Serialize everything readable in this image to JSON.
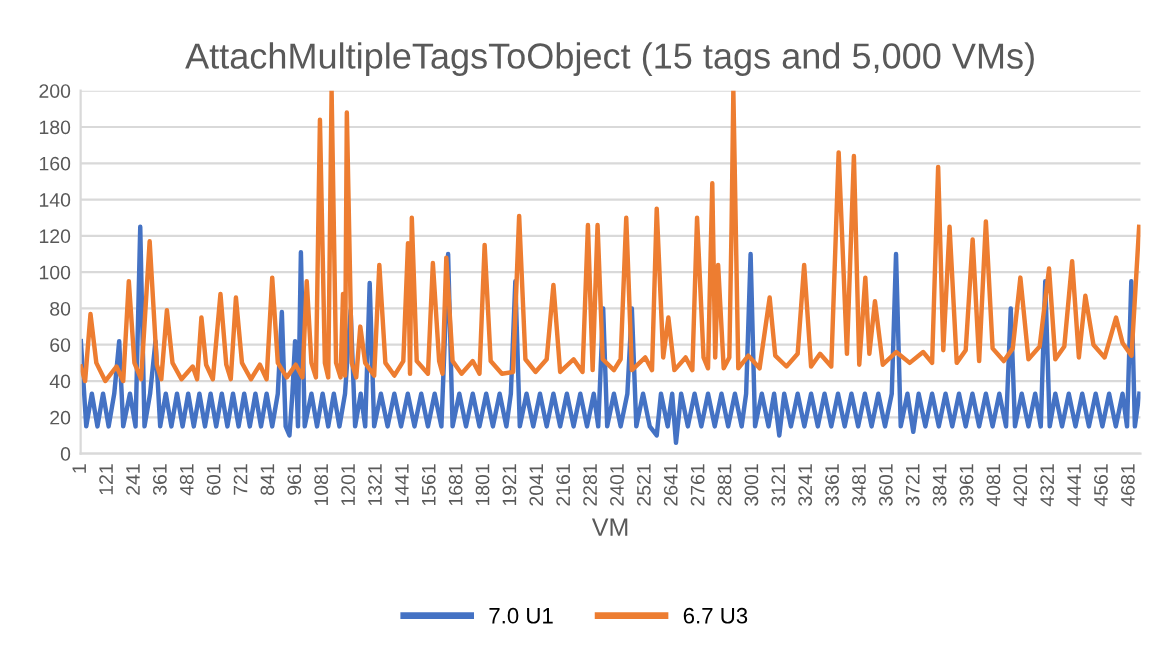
{
  "chart_data": {
    "type": "line",
    "title": "AttachMultipleTagsToObject (15 tags and 5,000 VMs)",
    "xlabel": "VM",
    "xlim": [
      0,
      4730
    ],
    "xticks": [
      1,
      121,
      241,
      361,
      481,
      601,
      721,
      841,
      961,
      1081,
      1201,
      1321,
      1441,
      1561,
      1681,
      1801,
      1921,
      2041,
      2161,
      2281,
      2401,
      2521,
      2641,
      2761,
      2881,
      3001,
      3121,
      3241,
      3361,
      3481,
      3601,
      3721,
      3841,
      3961,
      4081,
      4201,
      4321,
      4441,
      4561,
      4681
    ],
    "ylim": [
      0,
      200
    ],
    "yticks": [
      0,
      20,
      40,
      60,
      80,
      100,
      120,
      140,
      160,
      180,
      200
    ],
    "grid": "y",
    "legend": "bottom",
    "marker": "none",
    "line_style": "solid",
    "series": [
      {
        "name": "7.0 U1",
        "color": "#4472c4",
        "x": [
          1,
          25,
          50,
          75,
          100,
          125,
          150,
          172,
          190,
          220,
          245,
          266,
          285,
          310,
          334,
          355,
          380,
          405,
          430,
          455,
          480,
          505,
          530,
          555,
          580,
          605,
          630,
          655,
          680,
          705,
          730,
          755,
          780,
          805,
          830,
          855,
          880,
          898,
          915,
          932,
          945,
          957,
          970,
          983,
          1000,
          1030,
          1055,
          1080,
          1105,
          1130,
          1155,
          1180,
          1205,
          1225,
          1250,
          1270,
          1290,
          1310,
          1340,
          1370,
          1400,
          1430,
          1460,
          1490,
          1520,
          1550,
          1580,
          1610,
          1640,
          1660,
          1690,
          1720,
          1750,
          1780,
          1810,
          1840,
          1870,
          1900,
          1920,
          1940,
          1960,
          1990,
          2020,
          2050,
          2080,
          2110,
          2140,
          2170,
          2200,
          2230,
          2260,
          2290,
          2310,
          2332,
          2350,
          2380,
          2410,
          2440,
          2460,
          2480,
          2510,
          2540,
          2571,
          2590,
          2620,
          2640,
          2657,
          2680,
          2710,
          2740,
          2770,
          2800,
          2830,
          2860,
          2890,
          2920,
          2950,
          2970,
          2990,
          3010,
          3040,
          3070,
          3095,
          3118,
          3140,
          3170,
          3200,
          3230,
          3260,
          3290,
          3320,
          3350,
          3380,
          3410,
          3440,
          3470,
          3500,
          3530,
          3560,
          3590,
          3620,
          3639,
          3660,
          3690,
          3716,
          3740,
          3770,
          3800,
          3830,
          3860,
          3890,
          3920,
          3950,
          3980,
          4010,
          4040,
          4070,
          4100,
          4130,
          4151,
          4170,
          4200,
          4230,
          4260,
          4285,
          4305,
          4325,
          4350,
          4380,
          4410,
          4440,
          4470,
          4500,
          4530,
          4560,
          4590,
          4620,
          4650,
          4670,
          4689,
          4705,
          4725
        ],
        "values": [
          62,
          15,
          33,
          15,
          33,
          15,
          33,
          62,
          15,
          33,
          15,
          125,
          15,
          33,
          62,
          15,
          33,
          15,
          33,
          15,
          33,
          15,
          33,
          15,
          33,
          15,
          33,
          15,
          33,
          15,
          33,
          15,
          33,
          15,
          33,
          15,
          33,
          78,
          15,
          10,
          33,
          62,
          15,
          111,
          15,
          33,
          15,
          33,
          15,
          33,
          15,
          33,
          79,
          15,
          33,
          15,
          94,
          15,
          33,
          15,
          33,
          15,
          33,
          15,
          33,
          15,
          33,
          15,
          110,
          15,
          33,
          15,
          33,
          15,
          33,
          15,
          33,
          15,
          33,
          95,
          15,
          33,
          15,
          33,
          15,
          33,
          15,
          33,
          15,
          33,
          15,
          33,
          15,
          80,
          15,
          33,
          15,
          33,
          80,
          15,
          33,
          15,
          10,
          33,
          15,
          33,
          6,
          33,
          15,
          33,
          15,
          33,
          15,
          33,
          15,
          33,
          15,
          33,
          110,
          15,
          33,
          15,
          33,
          10,
          33,
          15,
          33,
          15,
          33,
          15,
          33,
          15,
          33,
          15,
          33,
          15,
          33,
          15,
          33,
          15,
          33,
          110,
          15,
          33,
          12,
          33,
          15,
          33,
          15,
          33,
          15,
          33,
          15,
          33,
          15,
          33,
          15,
          33,
          15,
          80,
          15,
          33,
          15,
          33,
          15,
          95,
          15,
          33,
          15,
          33,
          15,
          33,
          15,
          33,
          15,
          33,
          15,
          33,
          15,
          95,
          15,
          33
        ]
      },
      {
        "name": "6.7 U3",
        "color": "#ed7d31",
        "x": [
          1,
          20,
          44,
          70,
          110,
          160,
          190,
          215,
          240,
          270,
          308,
          340,
          360,
          385,
          410,
          450,
          500,
          520,
          539,
          560,
          590,
          624,
          650,
          670,
          693,
          720,
          760,
          800,
          830,
          855,
          880,
          920,
          960,
          990,
          1009,
          1030,
          1050,
          1068,
          1090,
          1105,
          1120,
          1140,
          1160,
          1171,
          1180,
          1188,
          1210,
          1230,
          1248,
          1270,
          1310,
          1333,
          1360,
          1400,
          1440,
          1461,
          1470,
          1478,
          1500,
          1550,
          1572,
          1600,
          1615,
          1632,
          1660,
          1700,
          1750,
          1780,
          1803,
          1830,
          1880,
          1930,
          1957,
          1985,
          2030,
          2080,
          2110,
          2140,
          2200,
          2240,
          2264,
          2285,
          2307,
          2330,
          2380,
          2410,
          2435,
          2460,
          2520,
          2550,
          2571,
          2600,
          2623,
          2650,
          2700,
          2730,
          2751,
          2780,
          2800,
          2819,
          2832,
          2845,
          2870,
          2895,
          2905,
          2913,
          2935,
          2980,
          3030,
          3075,
          3100,
          3150,
          3200,
          3229,
          3260,
          3300,
          3350,
          3383,
          3420,
          3451,
          3475,
          3502,
          3520,
          3545,
          3580,
          3640,
          3700,
          3760,
          3800,
          3827,
          3850,
          3878,
          3910,
          3950,
          3981,
          4010,
          4040,
          4070,
          4120,
          4160,
          4194,
          4230,
          4280,
          4322,
          4350,
          4390,
          4425,
          4455,
          4484,
          4520,
          4570,
          4621,
          4650,
          4690,
          4724
        ],
        "values": [
          48,
          40,
          77,
          50,
          40,
          48,
          40,
          95,
          50,
          41,
          117,
          49,
          41,
          79,
          50,
          41,
          48,
          41,
          75,
          49,
          41,
          88,
          49,
          41,
          86,
          50,
          41,
          49,
          41,
          97,
          50,
          42,
          49,
          42,
          95,
          50,
          42,
          184,
          50,
          42,
          200,
          50,
          42,
          88,
          43,
          188,
          50,
          42,
          70,
          50,
          43,
          104,
          50,
          43,
          51,
          116,
          44,
          130,
          51,
          44,
          105,
          51,
          44,
          108,
          51,
          44,
          51,
          44,
          115,
          51,
          44,
          45,
          131,
          52,
          45,
          52,
          93,
          45,
          52,
          45,
          126,
          46,
          126,
          52,
          46,
          52,
          130,
          46,
          53,
          46,
          135,
          53,
          75,
          46,
          53,
          46,
          130,
          53,
          47,
          149,
          53,
          104,
          47,
          53,
          125,
          200,
          47,
          54,
          47,
          86,
          54,
          48,
          55,
          104,
          48,
          55,
          48,
          166,
          55,
          164,
          49,
          97,
          55,
          84,
          49,
          56,
          50,
          56,
          50,
          158,
          57,
          125,
          50,
          57,
          118,
          51,
          128,
          58,
          51,
          58,
          97,
          52,
          59,
          102,
          52,
          59,
          106,
          53,
          87,
          60,
          53,
          75,
          61,
          54,
          125
        ]
      }
    ]
  }
}
